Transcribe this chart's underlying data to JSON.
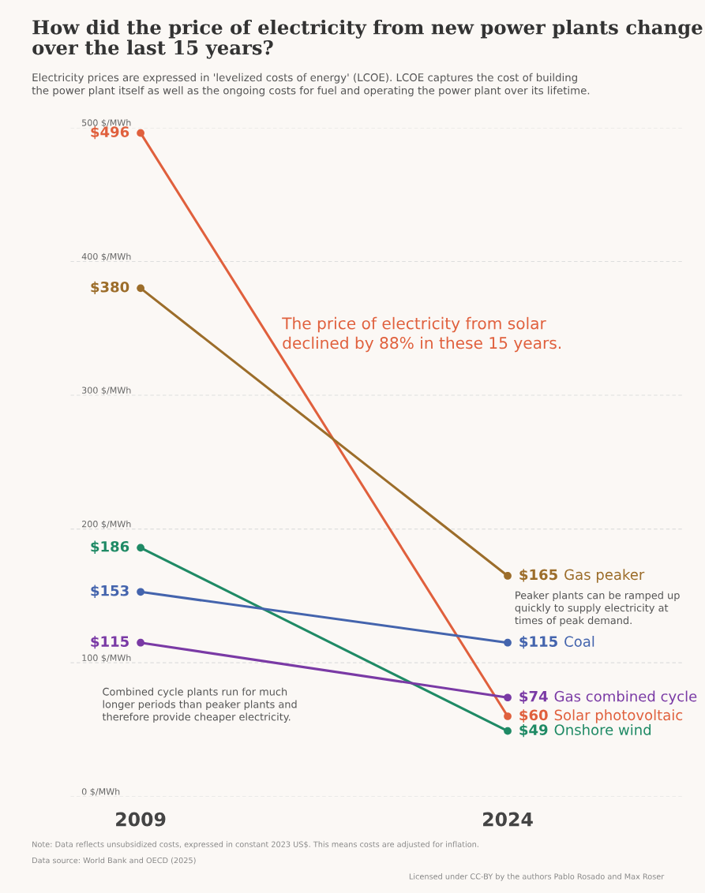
{
  "chart_data": {
    "type": "line",
    "title": "How did the price of electricity from new power plants change\nover the last 15 years?",
    "subtitle": "Electricity prices are expressed in 'levelized costs of energy' (LCOE). LCOE captures the cost of building\nthe power plant itself as well as the ongoing costs for fuel and operating the power plant over its lifetime.",
    "categories": [
      "2009",
      "2024"
    ],
    "series": [
      {
        "name": "Solar photovoltaic",
        "color": "#e0603d",
        "values": [
          496,
          60
        ],
        "value_labels": [
          "$496",
          "$60"
        ]
      },
      {
        "name": "Gas peaker",
        "color": "#9c6d2a",
        "values": [
          380,
          165
        ],
        "value_labels": [
          "$380",
          "$165"
        ]
      },
      {
        "name": "Onshore wind",
        "color": "#1f8a65",
        "values": [
          186,
          49
        ],
        "value_labels": [
          "$186",
          "$49"
        ]
      },
      {
        "name": "Coal",
        "color": "#4464ad",
        "values": [
          153,
          115
        ],
        "value_labels": [
          "$153",
          "$115"
        ]
      },
      {
        "name": "Gas combined cycle",
        "color": "#7a3aa5",
        "values": [
          115,
          74
        ],
        "value_labels": [
          "$115",
          "$74"
        ]
      }
    ],
    "ylim": [
      0,
      500
    ],
    "yticks": [
      {
        "value": 0,
        "label": "0 $/MWh"
      },
      {
        "value": 100,
        "label": "100 $/MWh"
      },
      {
        "value": 200,
        "label": "200 $/MWh"
      },
      {
        "value": 300,
        "label": "300 $/MWh"
      },
      {
        "value": 400,
        "label": "400 $/MWh"
      },
      {
        "value": 500,
        "label": "500 $/MWh"
      }
    ],
    "grid": "y",
    "legend": false,
    "marker": "circle",
    "line_style": "solid",
    "annotations": [
      "The price of electricity from solar\ndeclined by 88% in these 15 years.",
      "Peaker plants can be ramped up\nquickly to supply electricity at\ntimes of peak demand.",
      "Combined cycle plants run for much\nlonger periods than peaker plants and\ntherefore provide cheaper electricity.",
      "Note: Data reflects unsubsidized costs, expressed in constant 2023 US$. This means costs are adjusted for inflation.",
      "Data source: World Bank and OECD (2025)",
      "Licensed under CC-BY by the authors Pablo Rosado and Max Roser"
    ]
  }
}
